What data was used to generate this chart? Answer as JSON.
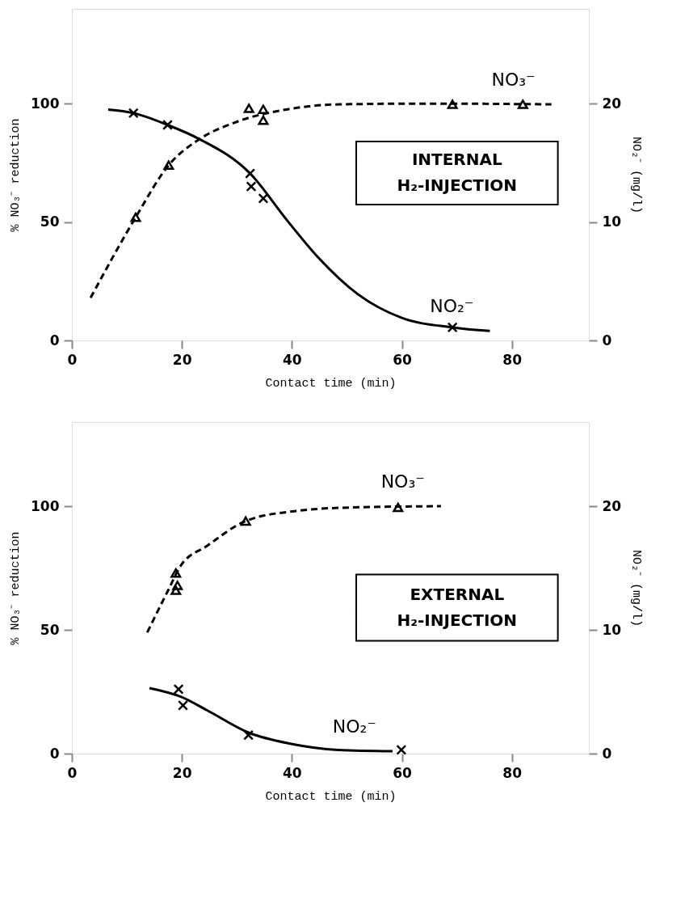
{
  "chart_data": [
    {
      "type": "line",
      "xlabel": "Contact time (min)",
      "ylabel": "% NO₃⁻ reduction",
      "y2label": "NO₂⁻ (mg/l)",
      "xlim": [
        0,
        94
      ],
      "xticks": [
        0,
        20,
        40,
        60,
        80
      ],
      "ylim": [
        0,
        140
      ],
      "yticks": [
        0,
        50,
        100
      ],
      "y2lim": [
        0,
        28
      ],
      "y2ticks": [
        0,
        10,
        20
      ],
      "grid": false,
      "annotations": [
        "INTERNAL\nH₂-INJECTION"
      ],
      "series": [
        {
          "name": "NO₃⁻",
          "axis": "y",
          "color": "#000000",
          "line_style": "dashed",
          "x": [
            3.4,
            11.6,
            17.6,
            23.2,
            29.6,
            39.2,
            48.8,
            64.8,
            87.2
          ],
          "values": [
            18,
            52,
            74,
            85,
            92,
            97.6,
            99.7,
            100,
            99.7
          ]
        },
        {
          "type": "scatter",
          "axis": "y",
          "color": "#000000",
          "marker": "triangle",
          "x": [
            11.6,
            17.6,
            32.2,
            34.8,
            34.8,
            69.2,
            82
          ],
          "values": [
            52,
            74,
            98,
            97.6,
            93,
            99.7,
            99.7
          ]
        },
        {
          "name": "NO₂⁻",
          "axis": "y2",
          "color": "#000000",
          "line_style": "solid",
          "x": [
            6.6,
            11.2,
            17.4,
            23.2,
            32.4,
            39.2,
            44.8,
            52,
            60,
            69.2,
            76
          ],
          "values": [
            19.5,
            19.2,
            18.2,
            17.0,
            14.1,
            10.1,
            7.0,
            3.9,
            1.9,
            1.1,
            0.8
          ]
        },
        {
          "type": "scatter",
          "axis": "y2",
          "color": "#000000",
          "marker": "cross",
          "x": [
            11.2,
            17.4,
            32.4,
            32.6,
            34.8,
            69.2
          ],
          "values": [
            19.2,
            18.2,
            14.1,
            13.0,
            12.0,
            1.1
          ]
        }
      ]
    },
    {
      "type": "line",
      "xlabel": "Contact time (min)",
      "ylabel": "% NO₃⁻ reduction",
      "y2label": "NO₂⁻ (mg/l)",
      "xlim": [
        0,
        94
      ],
      "xticks": [
        0,
        20,
        40,
        60,
        80
      ],
      "ylim": [
        0,
        134
      ],
      "yticks": [
        0,
        50,
        100
      ],
      "y2lim": [
        0,
        26.8
      ],
      "y2ticks": [
        0,
        10,
        20
      ],
      "grid": false,
      "annotations": [
        "EXTERNAL\nH₂-INJECTION"
      ],
      "series": [
        {
          "name": "NO₃⁻",
          "axis": "y",
          "color": "#000000",
          "line_style": "dashed",
          "x": [
            13.7,
            17.5,
            19.8,
            24.6,
            31.6,
            40.5,
            50.8,
            67.1
          ],
          "values": [
            49,
            66,
            76,
            84,
            94,
            98,
            99.5,
            100
          ]
        },
        {
          "type": "scatter",
          "axis": "y",
          "color": "#000000",
          "marker": "triangle",
          "x": [
            18.9,
            19.2,
            18.9,
            31.6,
            59.3
          ],
          "values": [
            73,
            68,
            66,
            94,
            99.5
          ]
        },
        {
          "name": "NO₂⁻",
          "axis": "y2",
          "color": "#000000",
          "line_style": "solid",
          "x": [
            14.1,
            19.8,
            24.6,
            32.1,
            39.7,
            48.4,
            58.3
          ],
          "values": [
            5.3,
            4.6,
            3.5,
            1.7,
            0.8,
            0.3,
            0.2
          ]
        },
        {
          "type": "scatter",
          "axis": "y2",
          "color": "#000000",
          "marker": "cross",
          "x": [
            19.4,
            20.2,
            32.1,
            59.9
          ],
          "values": [
            5.2,
            3.9,
            1.5,
            0.3
          ]
        }
      ]
    }
  ]
}
